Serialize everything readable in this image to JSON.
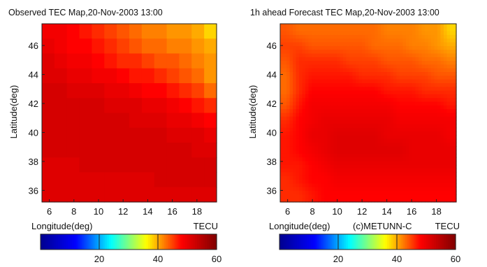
{
  "chart_data": [
    {
      "type": "heatmap",
      "title": "Observed TEC Map,20-Nov-2003 13:00",
      "xlabel": "Longitude(deg)",
      "ylabel": "Latitude(deg)",
      "x_ticks": [
        "6",
        "8",
        "10",
        "12",
        "14",
        "16",
        "18"
      ],
      "y_ticks": [
        "36",
        "38",
        "40",
        "42",
        "44",
        "46"
      ],
      "xlim": [
        5.4,
        19.6
      ],
      "ylim": [
        35.2,
        47.5
      ],
      "colorbar": {
        "unit": "TECU",
        "ticks": [
          "20",
          "40",
          "60"
        ],
        "range": [
          0,
          60
        ]
      },
      "smooth": false,
      "grid_lon": [
        6,
        7,
        8,
        9,
        10,
        11,
        12,
        13,
        14,
        15,
        16,
        17,
        18,
        19
      ],
      "grid_lat": [
        47,
        46,
        45,
        44,
        43,
        42,
        41,
        40,
        39,
        38,
        37,
        36
      ],
      "values": [
        [
          49,
          49,
          48,
          47,
          46,
          45,
          44,
          43,
          42,
          42,
          41,
          41,
          40,
          38
        ],
        [
          50,
          49,
          48,
          48,
          47,
          46,
          45,
          44,
          43,
          43,
          42,
          42,
          41,
          40
        ],
        [
          51,
          50,
          49,
          49,
          48,
          47,
          46,
          46,
          45,
          44,
          44,
          43,
          42,
          41
        ],
        [
          51,
          51,
          50,
          50,
          49,
          49,
          48,
          47,
          47,
          46,
          45,
          44,
          43,
          41
        ],
        [
          52,
          52,
          51,
          51,
          51,
          50,
          50,
          49,
          48,
          48,
          47,
          46,
          45,
          43
        ],
        [
          52,
          52,
          52,
          52,
          52,
          51,
          51,
          51,
          50,
          50,
          49,
          48,
          47,
          46
        ],
        [
          52,
          52,
          52,
          52,
          52,
          52,
          52,
          51,
          51,
          51,
          50,
          50,
          49,
          48
        ],
        [
          52,
          52,
          52,
          52,
          52,
          52,
          52,
          52,
          52,
          52,
          51,
          51,
          51,
          50
        ],
        [
          52,
          52,
          52,
          52,
          52,
          52,
          52,
          52,
          52,
          52,
          52,
          52,
          51,
          51
        ],
        [
          51,
          51,
          51,
          52,
          52,
          52,
          52,
          52,
          52,
          52,
          52,
          52,
          52,
          52
        ],
        [
          51,
          51,
          51,
          51,
          51,
          51,
          51,
          51,
          51,
          52,
          52,
          52,
          52,
          52
        ],
        [
          51,
          51,
          51,
          51,
          51,
          51,
          51,
          51,
          51,
          51,
          51,
          51,
          51,
          51
        ]
      ]
    },
    {
      "type": "heatmap",
      "title": "1h ahead Forecast TEC Map,20-Nov-2003 13:00",
      "xlabel": "Longitude(deg)",
      "ylabel": "Latitude(deg)",
      "annotation": "(c)METUNN-C",
      "x_ticks": [
        "6",
        "8",
        "10",
        "12",
        "14",
        "16",
        "18"
      ],
      "y_ticks": [
        "36",
        "38",
        "40",
        "42",
        "44",
        "46"
      ],
      "xlim": [
        5.4,
        19.6
      ],
      "ylim": [
        35.2,
        47.5
      ],
      "colorbar": {
        "unit": "TECU",
        "ticks": [
          "20",
          "40",
          "60"
        ],
        "range": [
          0,
          60
        ]
      },
      "smooth": true,
      "grid_lon": [
        6,
        7,
        8,
        9,
        10,
        11,
        12,
        13,
        14,
        15,
        16,
        17,
        18,
        19
      ],
      "grid_lat": [
        47,
        46,
        45,
        44,
        43,
        42,
        41,
        40,
        39,
        38,
        37,
        36
      ],
      "values": [
        [
          44,
          43,
          43,
          43,
          43,
          43,
          43,
          43,
          42,
          42,
          42,
          41,
          41,
          38
        ],
        [
          45,
          45,
          44,
          44,
          44,
          44,
          44,
          43,
          43,
          43,
          42,
          42,
          41,
          40
        ],
        [
          44,
          46,
          46,
          46,
          46,
          45,
          45,
          45,
          44,
          44,
          44,
          43,
          43,
          42
        ],
        [
          43,
          46,
          47,
          47,
          47,
          47,
          46,
          46,
          46,
          45,
          45,
          45,
          44,
          44
        ],
        [
          43,
          46,
          48,
          48,
          48,
          48,
          48,
          48,
          47,
          47,
          47,
          46,
          46,
          46
        ],
        [
          44,
          47,
          49,
          49,
          49,
          49,
          49,
          49,
          49,
          48,
          48,
          48,
          48,
          47
        ],
        [
          46,
          48,
          49,
          50,
          50,
          50,
          50,
          50,
          50,
          49,
          49,
          49,
          49,
          49
        ],
        [
          47,
          48,
          50,
          50,
          51,
          51,
          51,
          51,
          50,
          50,
          50,
          50,
          50,
          49
        ],
        [
          47,
          48,
          49,
          50,
          51,
          51,
          51,
          51,
          51,
          51,
          50,
          50,
          50,
          50
        ],
        [
          47,
          47,
          48,
          49,
          50,
          50,
          50,
          50,
          50,
          50,
          50,
          50,
          50,
          50
        ],
        [
          46,
          47,
          48,
          48,
          49,
          49,
          49,
          49,
          49,
          49,
          49,
          49,
          49,
          49
        ],
        [
          46,
          46,
          47,
          48,
          48,
          48,
          48,
          48,
          48,
          48,
          48,
          48,
          48,
          48
        ]
      ]
    }
  ],
  "colormap": [
    "#00008f",
    "#0000ff",
    "#00ffff",
    "#ffff00",
    "#ff0000",
    "#800000"
  ]
}
